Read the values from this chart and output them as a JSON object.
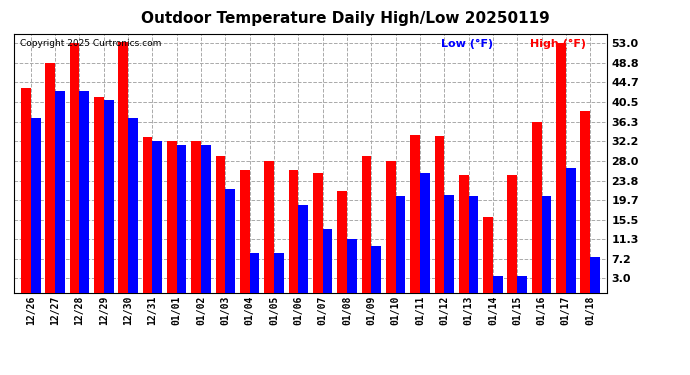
{
  "title": "Outdoor Temperature Daily High/Low 20250119",
  "copyright": "Copyright 2025 Curtronics.com",
  "legend_low": "Low (°F)",
  "legend_high": "High (°F)",
  "categories": [
    "12/26",
    "12/27",
    "12/28",
    "12/29",
    "12/30",
    "12/31",
    "01/01",
    "01/02",
    "01/03",
    "01/04",
    "01/05",
    "01/06",
    "01/07",
    "01/08",
    "01/09",
    "01/10",
    "01/11",
    "01/12",
    "01/13",
    "01/14",
    "01/15",
    "01/16",
    "01/17",
    "01/18"
  ],
  "highs": [
    43.5,
    48.8,
    53.0,
    41.5,
    53.2,
    33.0,
    32.2,
    32.2,
    29.0,
    26.0,
    28.0,
    26.0,
    25.5,
    21.5,
    29.0,
    28.0,
    33.5,
    33.2,
    25.0,
    16.0,
    25.0,
    36.3,
    53.0,
    38.5
  ],
  "lows": [
    37.0,
    42.8,
    42.8,
    41.0,
    37.0,
    32.2,
    31.3,
    31.3,
    22.0,
    8.5,
    8.5,
    18.5,
    13.5,
    11.3,
    9.8,
    20.5,
    25.5,
    20.8,
    20.5,
    3.5,
    3.5,
    20.5,
    26.5,
    7.5
  ],
  "high_color": "#ff0000",
  "low_color": "#0000ff",
  "bg_color": "#ffffff",
  "grid_color": "#aaaaaa",
  "yticks": [
    3.0,
    7.2,
    11.3,
    15.5,
    19.7,
    23.8,
    28.0,
    32.2,
    36.3,
    40.5,
    44.7,
    48.8,
    53.0
  ],
  "ylim_min": 0,
  "ylim_max": 55,
  "bar_width": 0.4
}
